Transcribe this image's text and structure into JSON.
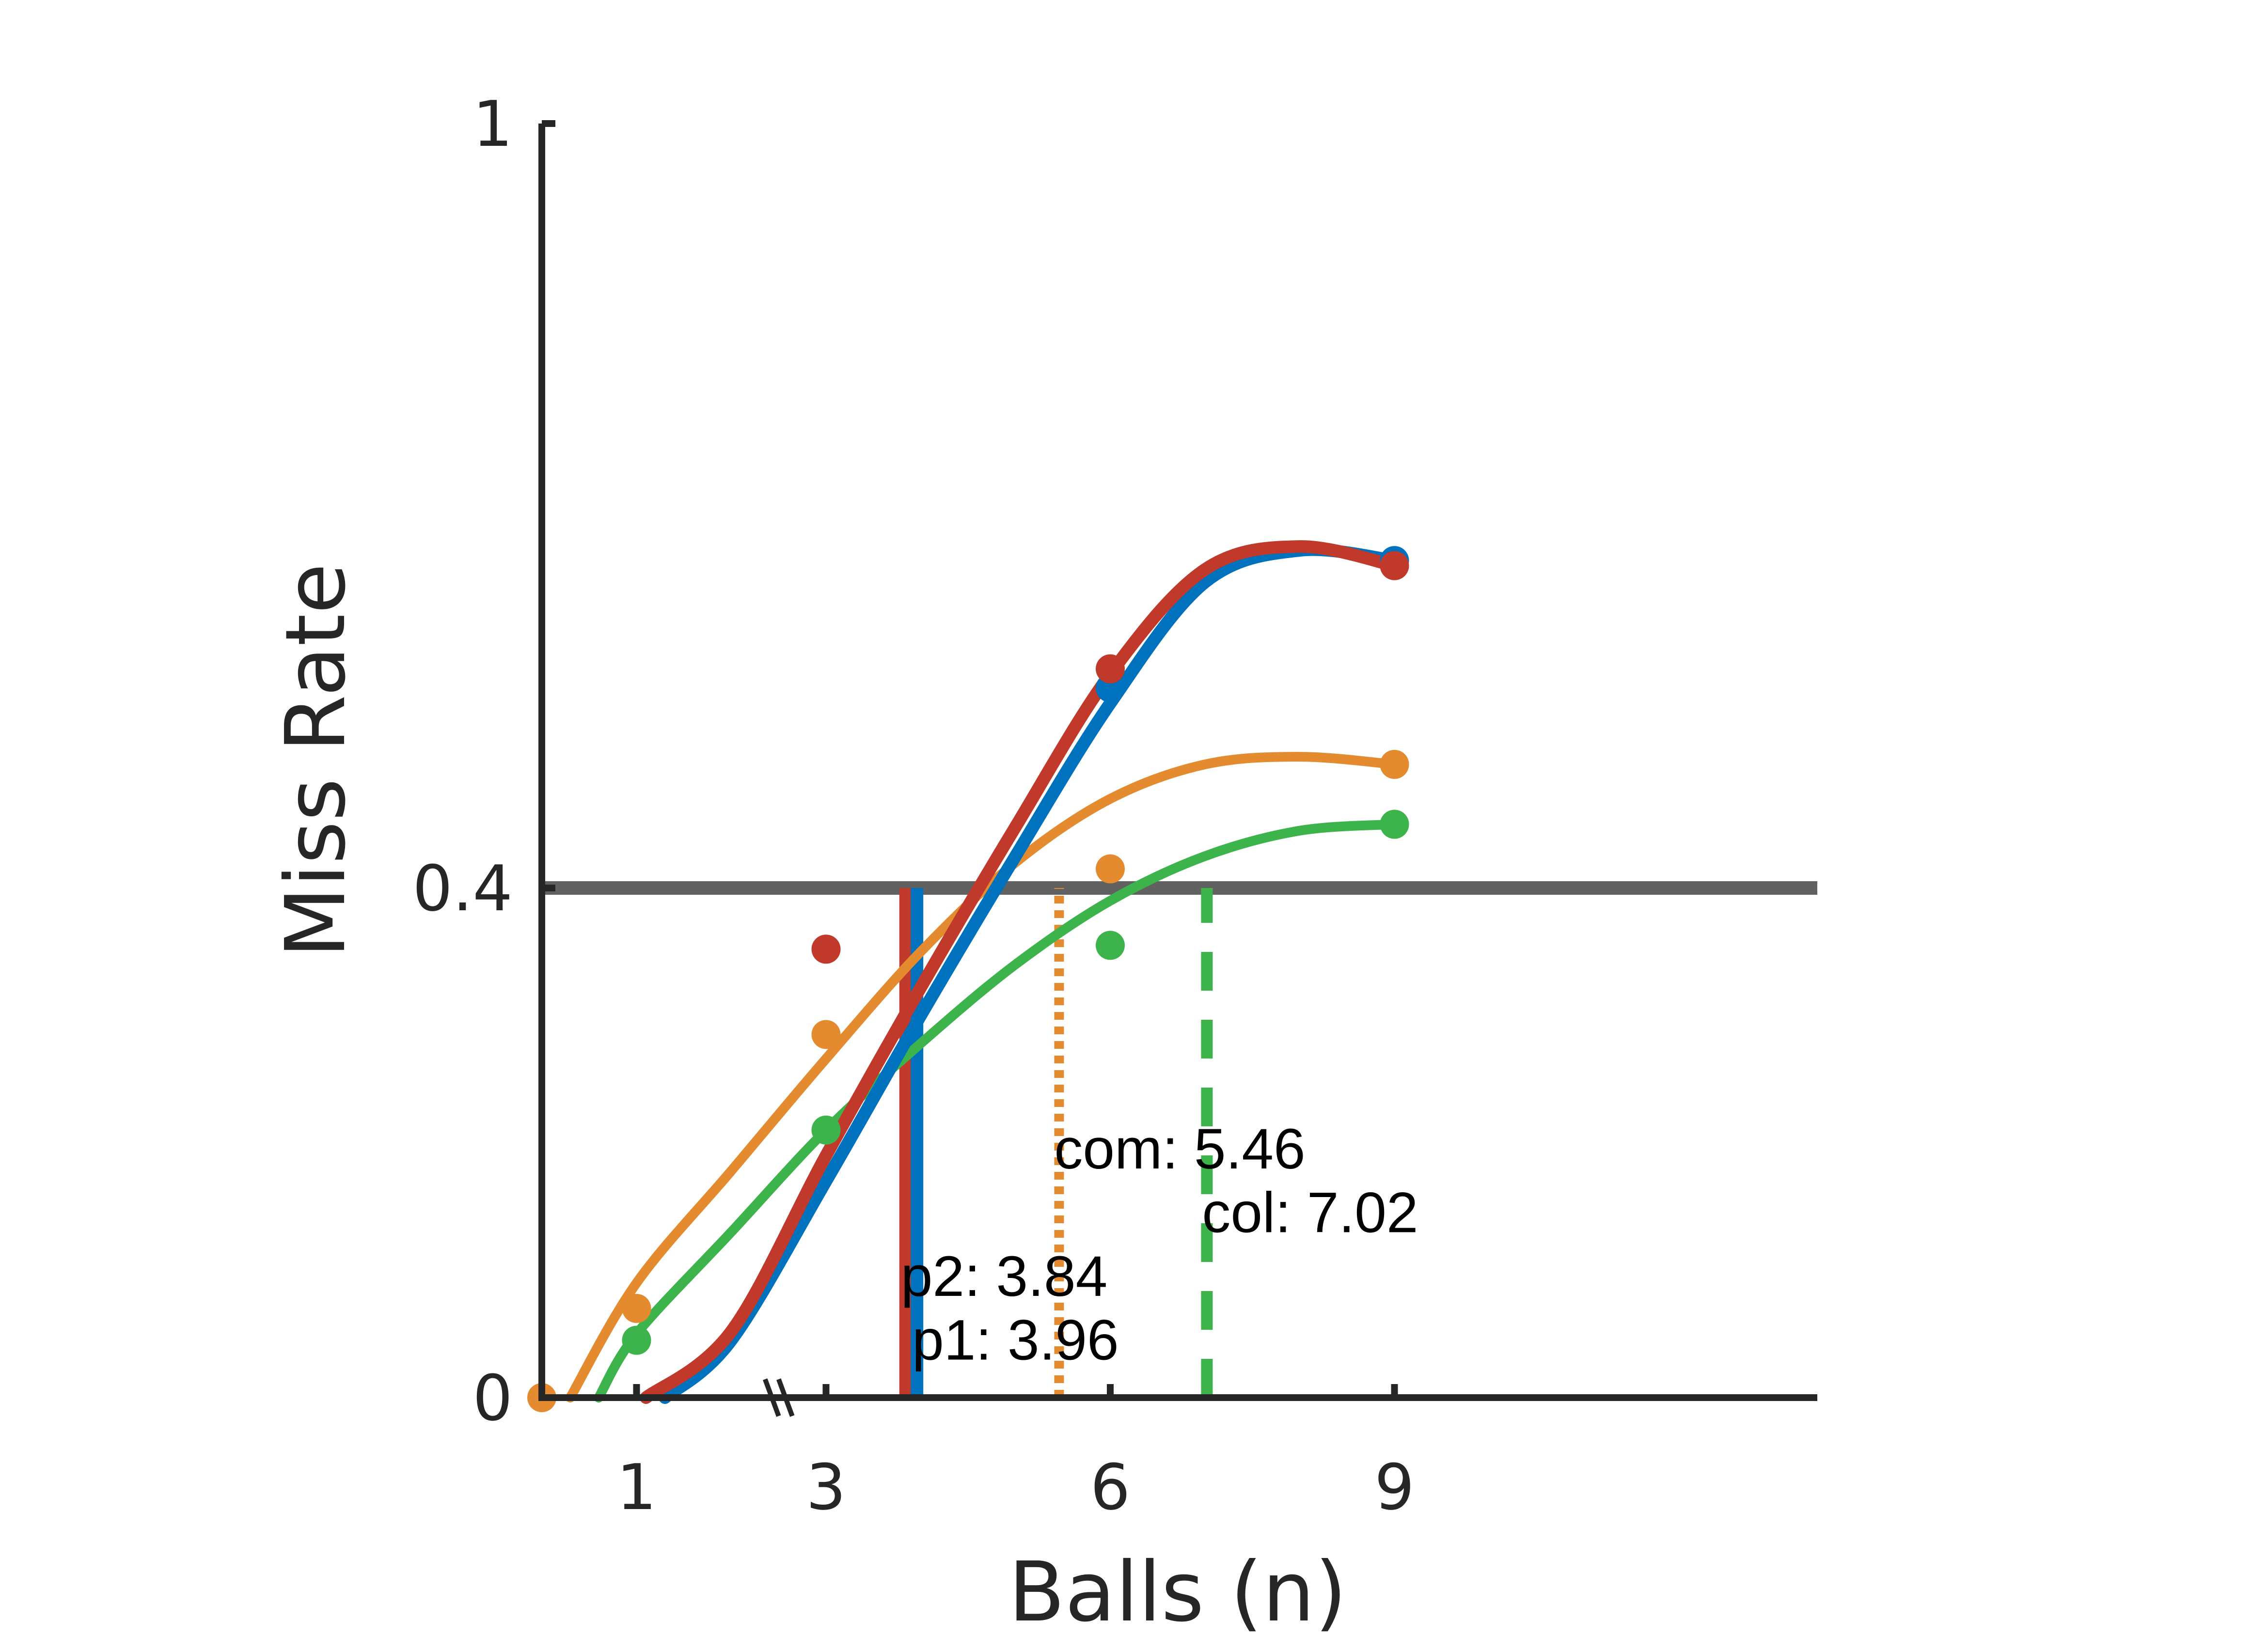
{
  "chart_data": {
    "type": "line",
    "xlabel": "Balls (n)",
    "ylabel": "Miss Rate",
    "x_ticks": [
      1,
      3,
      6,
      9
    ],
    "y_ticks": [
      0,
      0.4,
      1
    ],
    "ylim": [
      0,
      1
    ],
    "x_domain": [
      0,
      10
    ],
    "axis_break": "\\\\",
    "grid": false,
    "threshold": {
      "y": 0.4,
      "color": "#595959"
    },
    "series": [
      {
        "key": "p1",
        "color": "#0072BD",
        "points": [
          [
            6,
            0.557
          ],
          [
            9,
            0.657
          ]
        ],
        "curve": [
          [
            1.3,
            0
          ],
          [
            2,
            0.045
          ],
          [
            3,
            0.17
          ],
          [
            4,
            0.3
          ],
          [
            5,
            0.425
          ],
          [
            6,
            0.545
          ],
          [
            7,
            0.64
          ],
          [
            8,
            0.665
          ],
          [
            9,
            0.657
          ]
        ],
        "threshold_x": 3.96,
        "threshold_style": "solid"
      },
      {
        "key": "p2",
        "color": "#C0392B",
        "points": [
          [
            3,
            0.352
          ],
          [
            6,
            0.572
          ],
          [
            9,
            0.653
          ]
        ],
        "curve": [
          [
            1.1,
            0
          ],
          [
            2,
            0.052
          ],
          [
            3,
            0.19
          ],
          [
            4,
            0.322
          ],
          [
            5,
            0.448
          ],
          [
            6,
            0.568
          ],
          [
            7,
            0.65
          ],
          [
            8,
            0.668
          ],
          [
            9,
            0.653
          ]
        ],
        "threshold_x": 3.84,
        "threshold_style": "solid"
      },
      {
        "key": "com",
        "color": "#E58B2F",
        "points": [
          [
            0,
            0
          ],
          [
            1,
            0.07
          ],
          [
            3,
            0.285
          ],
          [
            6,
            0.415
          ],
          [
            9,
            0.497
          ]
        ],
        "curve": [
          [
            0.3,
            0
          ],
          [
            1,
            0.09
          ],
          [
            2,
            0.178
          ],
          [
            3,
            0.266
          ],
          [
            4,
            0.35
          ],
          [
            5,
            0.42
          ],
          [
            6,
            0.47
          ],
          [
            7,
            0.497
          ],
          [
            8,
            0.503
          ],
          [
            9,
            0.497
          ]
        ],
        "threshold_x": 5.46,
        "threshold_style": "dotted"
      },
      {
        "key": "col",
        "color": "#3CB44B",
        "points": [
          [
            1,
            0.045
          ],
          [
            3,
            0.21
          ],
          [
            6,
            0.355
          ],
          [
            9,
            0.45
          ]
        ],
        "curve": [
          [
            0.6,
            0
          ],
          [
            1,
            0.05
          ],
          [
            2,
            0.13
          ],
          [
            3,
            0.21
          ],
          [
            4,
            0.278
          ],
          [
            5,
            0.34
          ],
          [
            6,
            0.39
          ],
          [
            7,
            0.425
          ],
          [
            8,
            0.445
          ],
          [
            9,
            0.45
          ]
        ],
        "threshold_x": 7.02,
        "threshold_style": "dashed"
      }
    ],
    "annotations": [
      {
        "text": "p2: 3.84",
        "x": 3.84,
        "y": 0.095
      },
      {
        "text": "p1: 3.96",
        "x": 3.96,
        "y": 0.045
      },
      {
        "text": "com: 5.46",
        "x": 5.46,
        "y": 0.195
      },
      {
        "text": "col: 7.02",
        "x": 7.02,
        "y": 0.145
      }
    ]
  }
}
